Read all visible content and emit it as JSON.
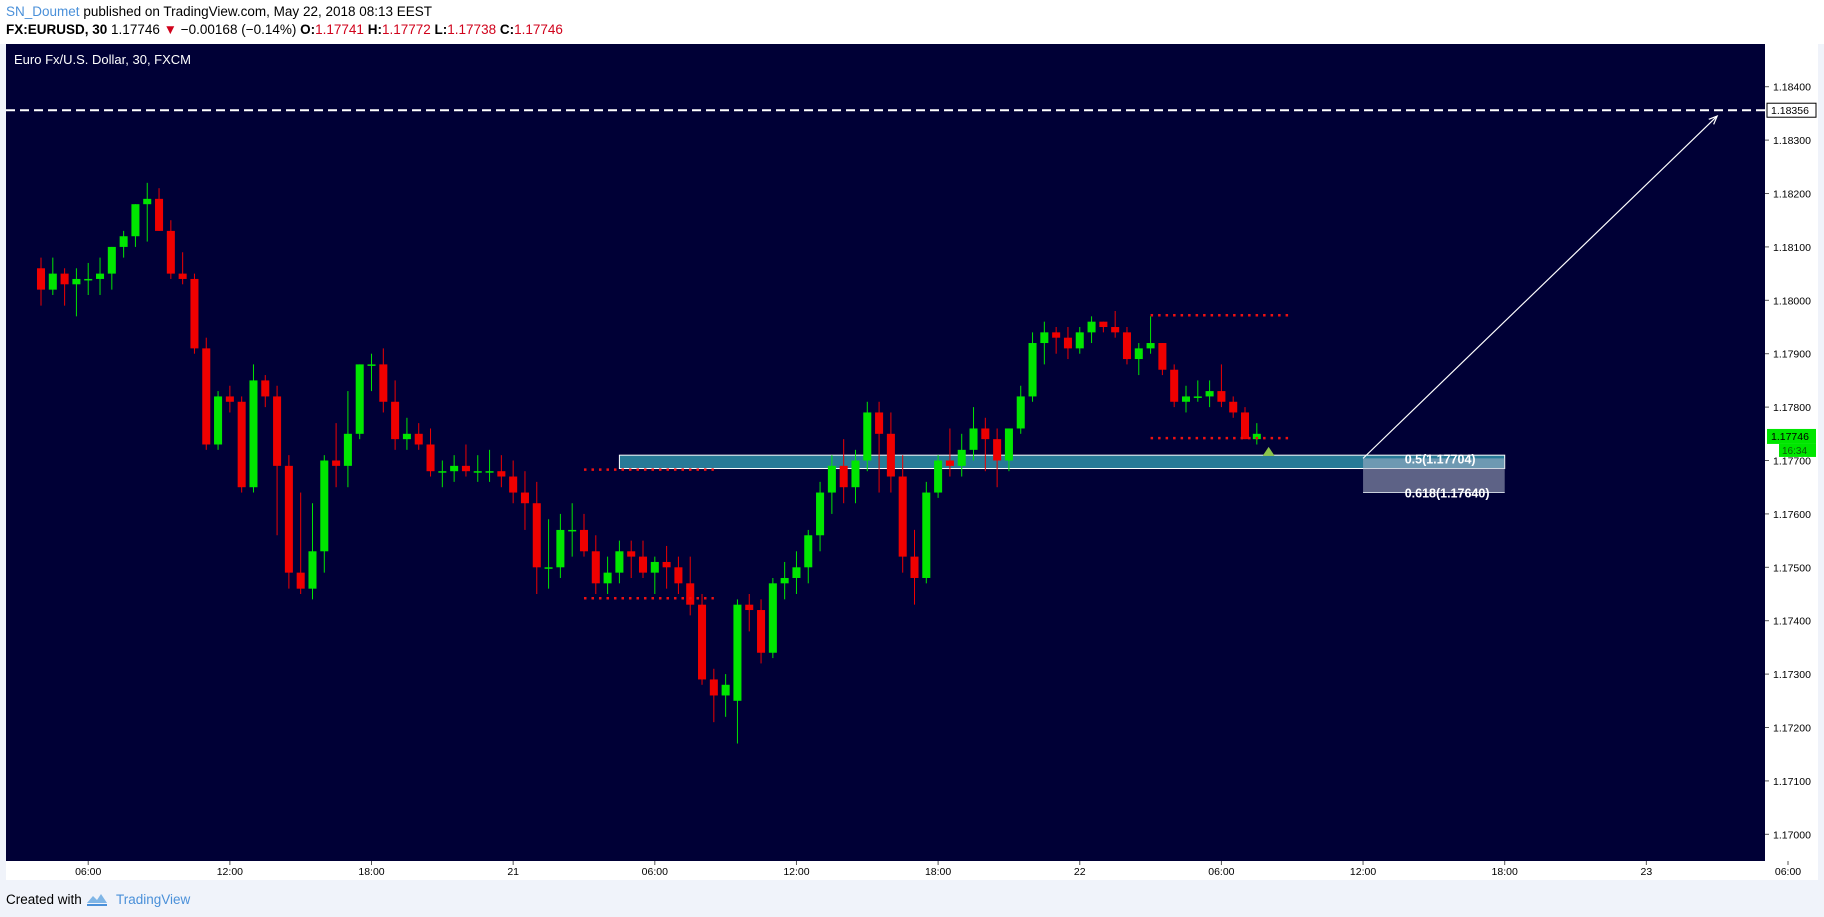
{
  "header": {
    "author": "SN_Doumet",
    "published_text": "published on TradingView.com, May 22, 2018 08:13 EEST",
    "symbol": "FX:EURUSD, 30",
    "last": "1.17746",
    "change_arrow": "▼",
    "change": "−0.00168 (−0.14%)",
    "o_label": "O:",
    "o_value": "1.17741",
    "h_label": "H:",
    "h_value": "1.17772",
    "l_label": "L:",
    "l_value": "1.17738",
    "c_label": "C:",
    "c_value": "1.17746"
  },
  "footer": {
    "created_with": "Created with",
    "brand": "TradingView"
  },
  "chart_data": {
    "type": "candlestick",
    "title": "Euro Fx/U.S. Dollar, 30, FXCM",
    "ylim": [
      1.1695,
      1.1848
    ],
    "y_ticks": [
      "1.17000",
      "1.17100",
      "1.17200",
      "1.17300",
      "1.17400",
      "1.17500",
      "1.17600",
      "1.17700",
      "1.17800",
      "1.17900",
      "1.18000",
      "1.18100",
      "1.18200",
      "1.18300",
      "1.18400"
    ],
    "x_start": "2018-05-20 04:00",
    "x_end": "2018-05-23 06:00",
    "x_ticks": [
      {
        "t": "2018-05-20 06:00",
        "label": "06:00"
      },
      {
        "t": "2018-05-20 12:00",
        "label": "12:00"
      },
      {
        "t": "2018-05-20 18:00",
        "label": "18:00"
      },
      {
        "t": "2018-05-21 00:00",
        "label": "21"
      },
      {
        "t": "2018-05-21 06:00",
        "label": "06:00"
      },
      {
        "t": "2018-05-21 12:00",
        "label": "12:00"
      },
      {
        "t": "2018-05-21 18:00",
        "label": "18:00"
      },
      {
        "t": "2018-05-22 00:00",
        "label": "22"
      },
      {
        "t": "2018-05-22 06:00",
        "label": "06:00"
      },
      {
        "t": "2018-05-22 12:00",
        "label": "12:00"
      },
      {
        "t": "2018-05-22 18:00",
        "label": "18:00"
      },
      {
        "t": "2018-05-23 00:00",
        "label": "23"
      },
      {
        "t": "2018-05-23 06:00",
        "label": "06:00"
      }
    ],
    "candles_start": "2018-05-20 04:00",
    "candle_minutes": 30,
    "candles": [
      [
        1.1806,
        1.1808,
        1.1799,
        1.1802
      ],
      [
        1.1802,
        1.1808,
        1.1801,
        1.1805
      ],
      [
        1.1805,
        1.1806,
        1.1799,
        1.1803
      ],
      [
        1.1803,
        1.1806,
        1.1797,
        1.1804
      ],
      [
        1.1804,
        1.1807,
        1.1801,
        1.1804
      ],
      [
        1.1804,
        1.1808,
        1.1801,
        1.1805
      ],
      [
        1.1805,
        1.181,
        1.1802,
        1.181
      ],
      [
        1.181,
        1.1813,
        1.1808,
        1.1812
      ],
      [
        1.1812,
        1.1818,
        1.181,
        1.1818
      ],
      [
        1.1818,
        1.1822,
        1.1811,
        1.1819
      ],
      [
        1.1819,
        1.1821,
        1.1813,
        1.1813
      ],
      [
        1.1813,
        1.1815,
        1.1804,
        1.1805
      ],
      [
        1.1805,
        1.1809,
        1.1803,
        1.1804
      ],
      [
        1.1804,
        1.1805,
        1.179,
        1.1791
      ],
      [
        1.1791,
        1.1793,
        1.1772,
        1.1773
      ],
      [
        1.1773,
        1.1783,
        1.1772,
        1.1782
      ],
      [
        1.1782,
        1.1784,
        1.1779,
        1.1781
      ],
      [
        1.1781,
        1.1782,
        1.1764,
        1.1765
      ],
      [
        1.1765,
        1.1788,
        1.1764,
        1.1785
      ],
      [
        1.1785,
        1.1786,
        1.178,
        1.1782
      ],
      [
        1.1782,
        1.1784,
        1.1756,
        1.1769
      ],
      [
        1.1769,
        1.1771,
        1.1746,
        1.1749
      ],
      [
        1.1749,
        1.1764,
        1.1745,
        1.1746
      ],
      [
        1.1746,
        1.1762,
        1.1744,
        1.1753
      ],
      [
        1.1753,
        1.1771,
        1.1749,
        1.177
      ],
      [
        1.177,
        1.1777,
        1.1765,
        1.1769
      ],
      [
        1.1769,
        1.1783,
        1.1765,
        1.1775
      ],
      [
        1.1775,
        1.1788,
        1.1774,
        1.1788
      ],
      [
        1.1788,
        1.179,
        1.1783,
        1.1788
      ],
      [
        1.1788,
        1.1791,
        1.1779,
        1.1781
      ],
      [
        1.1781,
        1.1785,
        1.1772,
        1.1774
      ],
      [
        1.1774,
        1.1778,
        1.1772,
        1.1775
      ],
      [
        1.1775,
        1.1777,
        1.1772,
        1.1773
      ],
      [
        1.1773,
        1.1776,
        1.1767,
        1.1768
      ],
      [
        1.1768,
        1.177,
        1.1765,
        1.1768
      ],
      [
        1.1768,
        1.1771,
        1.1766,
        1.1769
      ],
      [
        1.1769,
        1.1773,
        1.1767,
        1.1768
      ],
      [
        1.1768,
        1.1771,
        1.1766,
        1.1768
      ],
      [
        1.1768,
        1.1772,
        1.1766,
        1.1768
      ],
      [
        1.1768,
        1.1771,
        1.1765,
        1.1767
      ],
      [
        1.1767,
        1.177,
        1.1762,
        1.1764
      ],
      [
        1.1764,
        1.1768,
        1.1757,
        1.1762
      ],
      [
        1.1762,
        1.1766,
        1.1745,
        1.175
      ],
      [
        1.175,
        1.1759,
        1.1746,
        1.175
      ],
      [
        1.175,
        1.176,
        1.1748,
        1.1757
      ],
      [
        1.1757,
        1.1762,
        1.1752,
        1.1757
      ],
      [
        1.1757,
        1.176,
        1.1752,
        1.1753
      ],
      [
        1.1753,
        1.1756,
        1.1745,
        1.1747
      ],
      [
        1.1747,
        1.1752,
        1.1745,
        1.1749
      ],
      [
        1.1749,
        1.1755,
        1.1747,
        1.1753
      ],
      [
        1.1753,
        1.1755,
        1.1748,
        1.1752
      ],
      [
        1.1752,
        1.1755,
        1.1748,
        1.1749
      ],
      [
        1.1749,
        1.1752,
        1.1745,
        1.1751
      ],
      [
        1.1751,
        1.1754,
        1.1746,
        1.175
      ],
      [
        1.175,
        1.1752,
        1.1745,
        1.1747
      ],
      [
        1.1747,
        1.1752,
        1.1741,
        1.1743
      ],
      [
        1.1743,
        1.1745,
        1.1728,
        1.1729
      ],
      [
        1.1729,
        1.1731,
        1.1721,
        1.1726
      ],
      [
        1.1726,
        1.173,
        1.1722,
        1.1728
      ],
      [
        1.1725,
        1.1744,
        1.1717,
        1.1743
      ],
      [
        1.1743,
        1.1745,
        1.1738,
        1.1742
      ],
      [
        1.1742,
        1.1744,
        1.1732,
        1.1734
      ],
      [
        1.1734,
        1.1748,
        1.1733,
        1.1747
      ],
      [
        1.1747,
        1.1751,
        1.1744,
        1.1748
      ],
      [
        1.1748,
        1.1753,
        1.1745,
        1.175
      ],
      [
        1.175,
        1.1757,
        1.1747,
        1.1756
      ],
      [
        1.1756,
        1.1766,
        1.1753,
        1.1764
      ],
      [
        1.1764,
        1.1771,
        1.176,
        1.1769
      ],
      [
        1.1769,
        1.1774,
        1.1762,
        1.1765
      ],
      [
        1.1765,
        1.1772,
        1.1762,
        1.177
      ],
      [
        1.177,
        1.1781,
        1.1768,
        1.1779
      ],
      [
        1.1779,
        1.1781,
        1.1764,
        1.1775
      ],
      [
        1.1775,
        1.1779,
        1.1764,
        1.1767
      ],
      [
        1.1767,
        1.1771,
        1.1749,
        1.1752
      ],
      [
        1.1752,
        1.1757,
        1.1743,
        1.1748
      ],
      [
        1.1748,
        1.1766,
        1.1747,
        1.1764
      ],
      [
        1.1764,
        1.1771,
        1.1763,
        1.177
      ],
      [
        1.177,
        1.1776,
        1.1767,
        1.1769
      ],
      [
        1.1769,
        1.1775,
        1.1767,
        1.1772
      ],
      [
        1.1772,
        1.178,
        1.177,
        1.1776
      ],
      [
        1.1776,
        1.1778,
        1.1768,
        1.1774
      ],
      [
        1.1774,
        1.1776,
        1.1765,
        1.177
      ],
      [
        1.177,
        1.1776,
        1.1768,
        1.1776
      ],
      [
        1.1776,
        1.1784,
        1.1775,
        1.1782
      ],
      [
        1.1782,
        1.1794,
        1.1781,
        1.1792
      ],
      [
        1.1792,
        1.1796,
        1.1788,
        1.1794
      ],
      [
        1.1794,
        1.1795,
        1.179,
        1.1793
      ],
      [
        1.1793,
        1.1795,
        1.1789,
        1.1791
      ],
      [
        1.1791,
        1.1795,
        1.179,
        1.1794
      ],
      [
        1.1794,
        1.1797,
        1.1792,
        1.1796
      ],
      [
        1.1796,
        1.1796,
        1.1794,
        1.1795
      ],
      [
        1.1795,
        1.1798,
        1.1793,
        1.1794
      ],
      [
        1.1794,
        1.1795,
        1.1788,
        1.1789
      ],
      [
        1.1789,
        1.1792,
        1.1786,
        1.1791
      ],
      [
        1.1791,
        1.1797,
        1.179,
        1.1792
      ],
      [
        1.1792,
        1.1792,
        1.1786,
        1.1787
      ],
      [
        1.1787,
        1.1788,
        1.178,
        1.1781
      ],
      [
        1.1781,
        1.1784,
        1.1779,
        1.1782
      ],
      [
        1.1782,
        1.1785,
        1.1781,
        1.1782
      ],
      [
        1.1782,
        1.1785,
        1.178,
        1.1783
      ],
      [
        1.1783,
        1.1788,
        1.178,
        1.1781
      ],
      [
        1.1781,
        1.1782,
        1.1778,
        1.1779
      ],
      [
        1.1779,
        1.178,
        1.1774,
        1.1774
      ],
      [
        1.1774,
        1.1777,
        1.1773,
        1.1775
      ]
    ],
    "colors": {
      "background": "#000036",
      "up": "#00e600",
      "down": "#ef0000",
      "axis_text": "#000000",
      "grid": "none"
    },
    "annotations": {
      "target_price": {
        "value": 1.18356,
        "label": "1.18356"
      },
      "current_price": {
        "value": 1.17746,
        "label": "1.17746",
        "countdown": "16:34"
      },
      "demand_zone": {
        "from_t": "2018-05-21 04:30",
        "to_t": "2018-05-22 18:00",
        "top": 1.1771,
        "bottom": 1.17685
      },
      "fib": [
        {
          "label": "0.5(1.17704)",
          "value": 1.17704
        },
        {
          "label": "0.618(1.17640)",
          "value": 1.1764
        }
      ],
      "fib_box": {
        "from_t": "2018-05-22 12:00",
        "to_t": "2018-05-22 18:00",
        "top": 1.17704,
        "bottom": 1.1764
      },
      "dotted_levels": [
        {
          "from_t": "2018-05-21 03:00",
          "to_t": "2018-05-21 08:30",
          "value": 1.17683
        },
        {
          "from_t": "2018-05-21 03:00",
          "to_t": "2018-05-21 08:30",
          "value": 1.17442
        },
        {
          "from_t": "2018-05-22 03:00",
          "to_t": "2018-05-22 09:00",
          "value": 1.17972
        },
        {
          "from_t": "2018-05-22 03:00",
          "to_t": "2018-05-22 09:00",
          "value": 1.17742
        }
      ],
      "arrow": {
        "from_t": "2018-05-22 12:00",
        "from_v": 1.17704,
        "to_t": "2018-05-23 03:00",
        "to_v": 1.18345
      },
      "marker": {
        "t": "2018-05-22 08:00",
        "v": 1.17705
      }
    },
    "grid": false,
    "legend": "none"
  }
}
